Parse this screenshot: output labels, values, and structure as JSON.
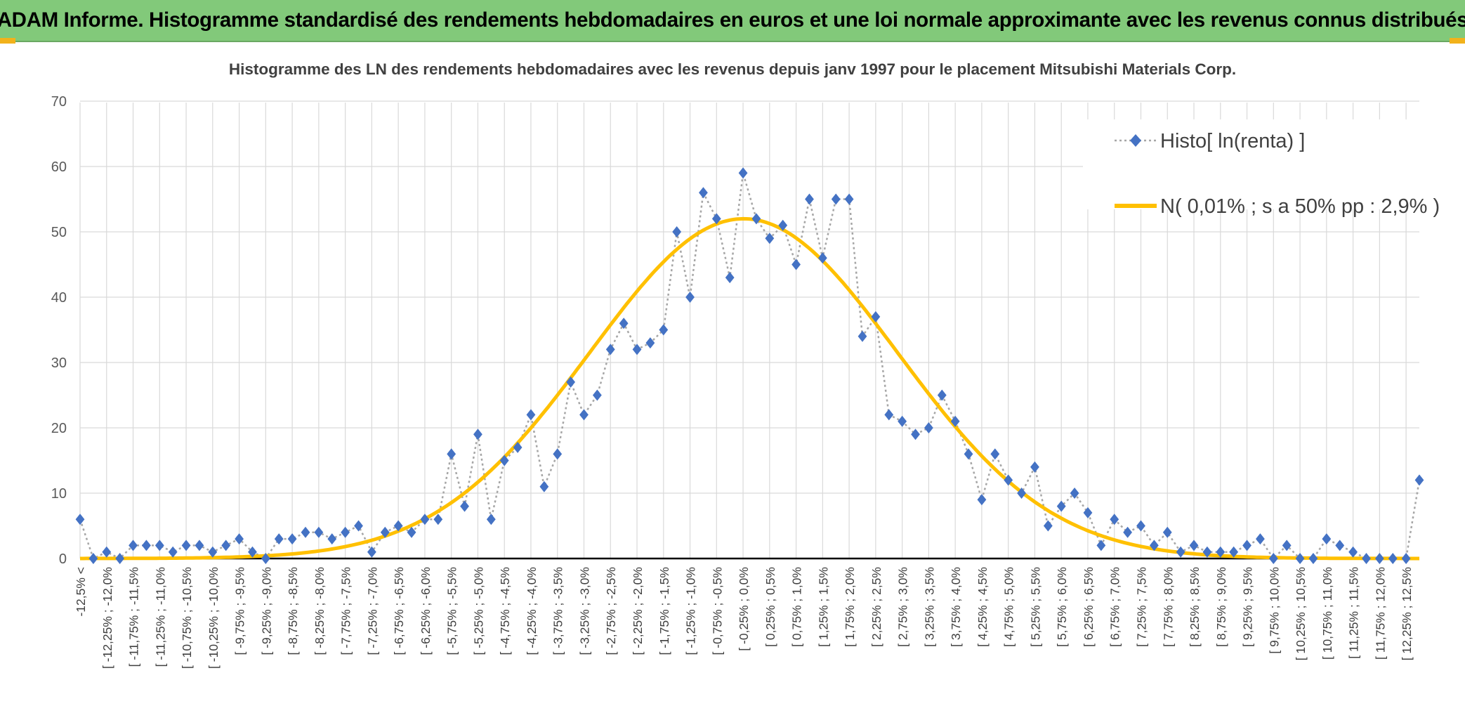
{
  "banner": {
    "title": "ADAM Informe. Histogramme standardisé des rendements hebdomadaires en euros et une loi normale approximante avec les revenus connus distribués"
  },
  "colors": {
    "banner_bg": "#82c97a",
    "histo_marker": "#4472c4",
    "histo_line": "#a6a6a6",
    "normal_curve": "#ffc000",
    "grid": "#d9d9d9",
    "corner_accent": "#f2b21b"
  },
  "chart_data": {
    "type": "line",
    "title": "Histogramme des LN des rendements hebdomadaires avec les revenus depuis janv 1997 pour le placement Mitsubishi Materials  Corp.",
    "ylim": [
      0,
      70
    ],
    "yticks": [
      "0",
      "10",
      "20",
      "30",
      "40",
      "50",
      "60",
      "70"
    ],
    "grid": true,
    "legend_position": "top-right",
    "tick_labels": [
      "-12,5% <",
      "[ -12,25% ; -12,0%",
      "[ -11,75% ; -11,5%",
      "[ -11,25% ; -11,0%",
      "[ -10,75% ; -10,5%",
      "[ -10,25% ; -10,0%",
      "[ -9,75% ; -9,5%",
      "[ -9,25% ; -9,0%",
      "[ -8,75% ; -8,5%",
      "[ -8,25% ; -8,0%",
      "[ -7,75% ; -7,5%",
      "[ -7,25% ; -7,0%",
      "[ -6,75% ; -6,5%",
      "[ -6,25% ; -6,0%",
      "[ -5,75% ; -5,5%",
      "[ -5,25% ; -5,0%",
      "[ -4,75% ; -4,5%",
      "[ -4,25% ; -4,0%",
      "[ -3,75% ; -3,5%",
      "[ -3,25% ; -3,0%",
      "[ -2,75% ; -2,5%",
      "[ -2,25% ; -2,0%",
      "[ -1,75% ; -1,5%",
      "[ -1,25% ; -1,0%",
      "[ -0,75% ; -0,5%",
      "[ -0,25% ; 0,0%",
      "[ 0,25% ; 0,5%",
      "[ 0,75% ; 1,0%",
      "[ 1,25% ; 1,5%",
      "[ 1,75% ; 2,0%",
      "[ 2,25% ; 2,5%",
      "[ 2,75% ; 3,0%",
      "[ 3,25% ; 3,5%",
      "[ 3,75% ; 4,0%",
      "[ 4,25% ; 4,5%",
      "[ 4,75% ; 5,0%",
      "[ 5,25% ; 5,5%",
      "[ 5,75% ; 6,0%",
      "[ 6,25% ; 6,5%",
      "[ 6,75% ; 7,0%",
      "[ 7,25% ; 7,5%",
      "[ 7,75% ; 8,0%",
      "[ 8,25% ; 8,5%",
      "[ 8,75% ; 9,0%",
      "[ 9,25% ; 9,5%",
      "[ 9,75% ; 10,0%",
      "[ 10,25% ; 10,5%",
      "[ 10,75% ; 11,0%",
      "[ 11,25% ; 11,5%",
      "[ 11,75% ; 12,0%",
      "[ 12,25% ; 12,5%"
    ],
    "series": [
      {
        "name": "Histo[ ln(renta) ]",
        "values": [
          6,
          0,
          1,
          0,
          2,
          2,
          2,
          1,
          2,
          2,
          1,
          2,
          3,
          1,
          0,
          3,
          3,
          4,
          4,
          3,
          4,
          5,
          1,
          4,
          5,
          4,
          6,
          6,
          16,
          8,
          19,
          6,
          15,
          17,
          22,
          11,
          16,
          27,
          22,
          25,
          32,
          36,
          32,
          33,
          35,
          50,
          40,
          56,
          52,
          43,
          59,
          52,
          49,
          51,
          45,
          55,
          46,
          55,
          55,
          34,
          37,
          22,
          21,
          19,
          20,
          25,
          21,
          16,
          9,
          16,
          12,
          10,
          14,
          5,
          8,
          10,
          7,
          2,
          6,
          4,
          5,
          2,
          4,
          1,
          2,
          1,
          1,
          1,
          2,
          3,
          0,
          2,
          0,
          0,
          3,
          2,
          1,
          0,
          0,
          0,
          0,
          12
        ]
      },
      {
        "name": "N( 0,01% ; s a 50% pp : 2,9% )",
        "mean_pct": 0.01,
        "sd_pct": 2.9,
        "peak": 52
      }
    ]
  }
}
